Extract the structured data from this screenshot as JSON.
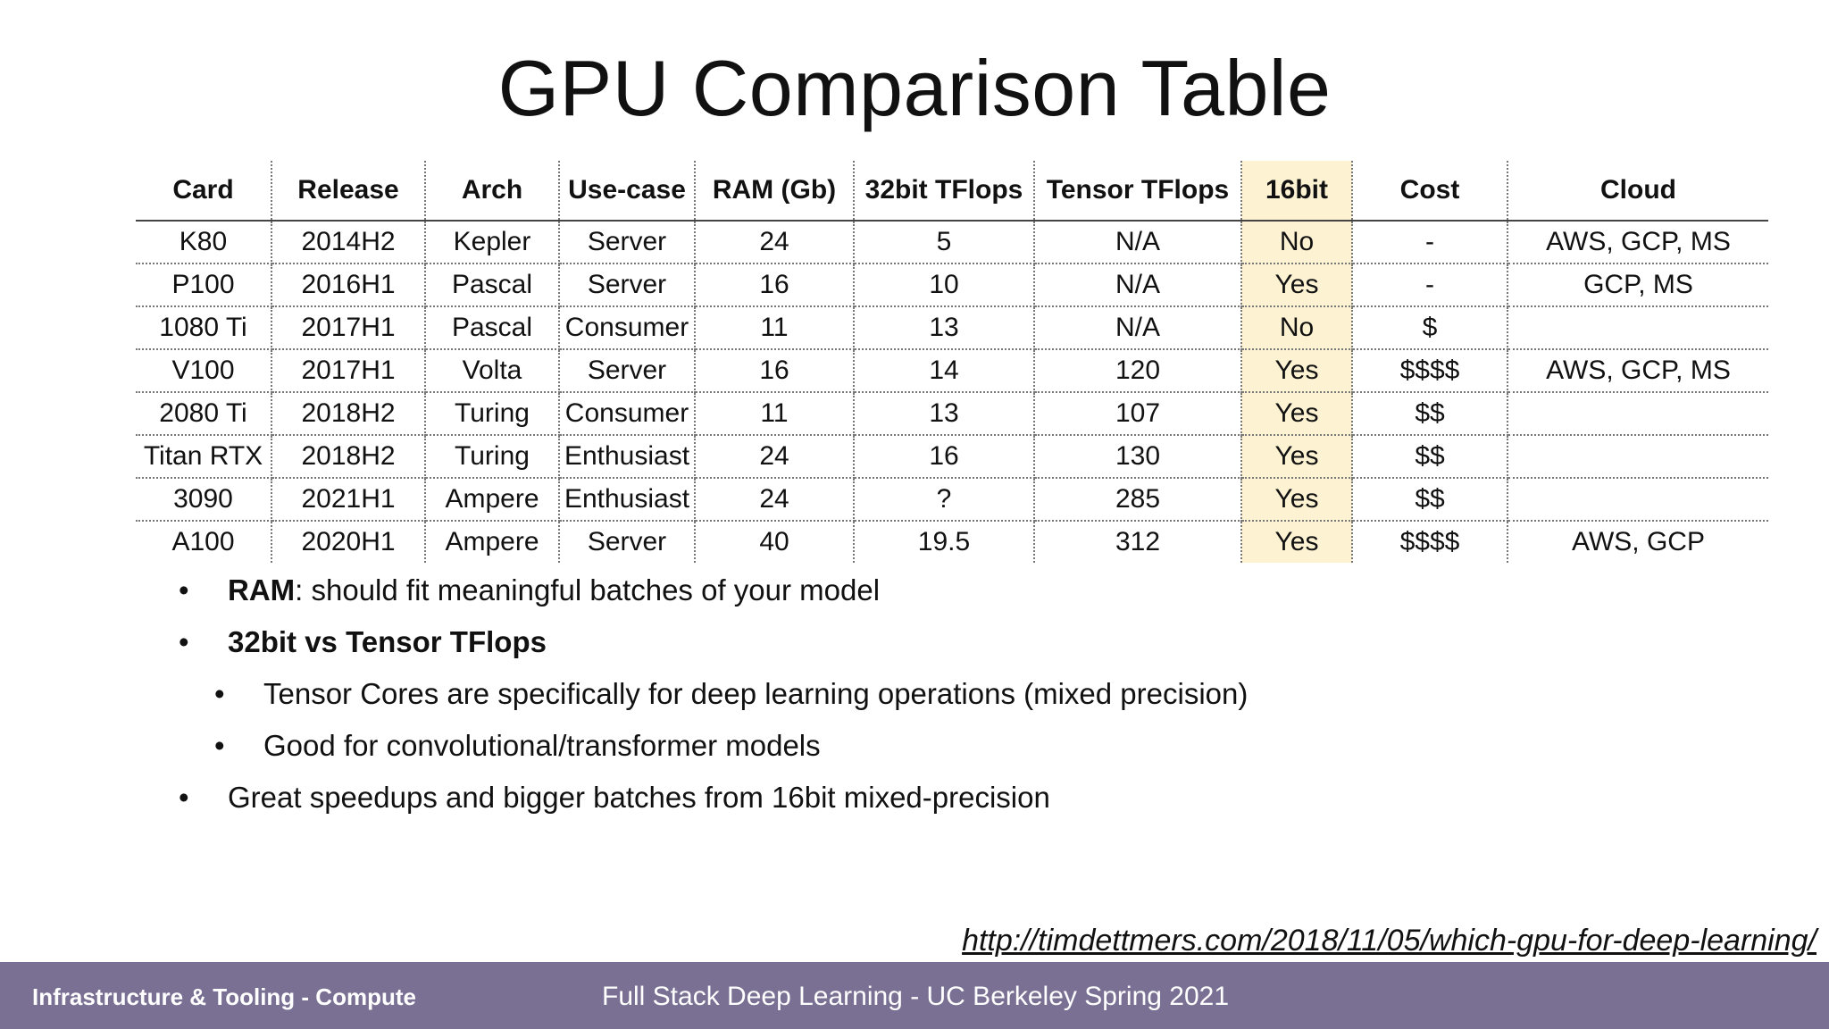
{
  "title": "GPU Comparison Table",
  "table": {
    "headers": [
      "Card",
      "Release",
      "Arch",
      "Use-case",
      "RAM (Gb)",
      "32bit TFlops",
      "Tensor TFlops",
      "16bit",
      "Cost",
      "Cloud"
    ],
    "rows": [
      [
        "K80",
        "2014H2",
        "Kepler",
        "Server",
        "24",
        "5",
        "N/A",
        "No",
        "-",
        "AWS, GCP, MS"
      ],
      [
        "P100",
        "2016H1",
        "Pascal",
        "Server",
        "16",
        "10",
        "N/A",
        "Yes",
        "-",
        "GCP, MS"
      ],
      [
        "1080 Ti",
        "2017H1",
        "Pascal",
        "Consumer",
        "11",
        "13",
        "N/A",
        "No",
        "$",
        ""
      ],
      [
        "V100",
        "2017H1",
        "Volta",
        "Server",
        "16",
        "14",
        "120",
        "Yes",
        "$$$$",
        "AWS, GCP, MS"
      ],
      [
        "2080 Ti",
        "2018H2",
        "Turing",
        "Consumer",
        "11",
        "13",
        "107",
        "Yes",
        "$$",
        ""
      ],
      [
        "Titan RTX",
        "2018H2",
        "Turing",
        "Enthusiast",
        "24",
        "16",
        "130",
        "Yes",
        "$$",
        ""
      ],
      [
        "3090",
        "2021H1",
        "Ampere",
        "Enthusiast",
        "24",
        "?",
        "285",
        "Yes",
        "$$",
        ""
      ],
      [
        "A100",
        "2020H1",
        "Ampere",
        "Server",
        "40",
        "19.5",
        "312",
        "Yes",
        "$$$$",
        "AWS, GCP"
      ]
    ]
  },
  "bullets": {
    "ram_bold": "RAM",
    "ram_text": ": should fit meaningful batches of your model",
    "tflops_bold": "32bit vs Tensor TFlops",
    "sub1": "Tensor Cores are specifically for deep learning operations (mixed precision)",
    "sub2": "Good for convolutional/transformer models",
    "speedups": "Great speedups and bigger batches from 16bit mixed-precision"
  },
  "link": "http://timdettmers.com/2018/11/05/which-gpu-for-deep-learning/",
  "footer": {
    "left": "Infrastructure & Tooling - Compute",
    "center": "Full Stack Deep Learning - UC Berkeley Spring 2021"
  },
  "colors": {
    "highlight": "#fdf2d2",
    "footer_bg": "#7a7093"
  }
}
